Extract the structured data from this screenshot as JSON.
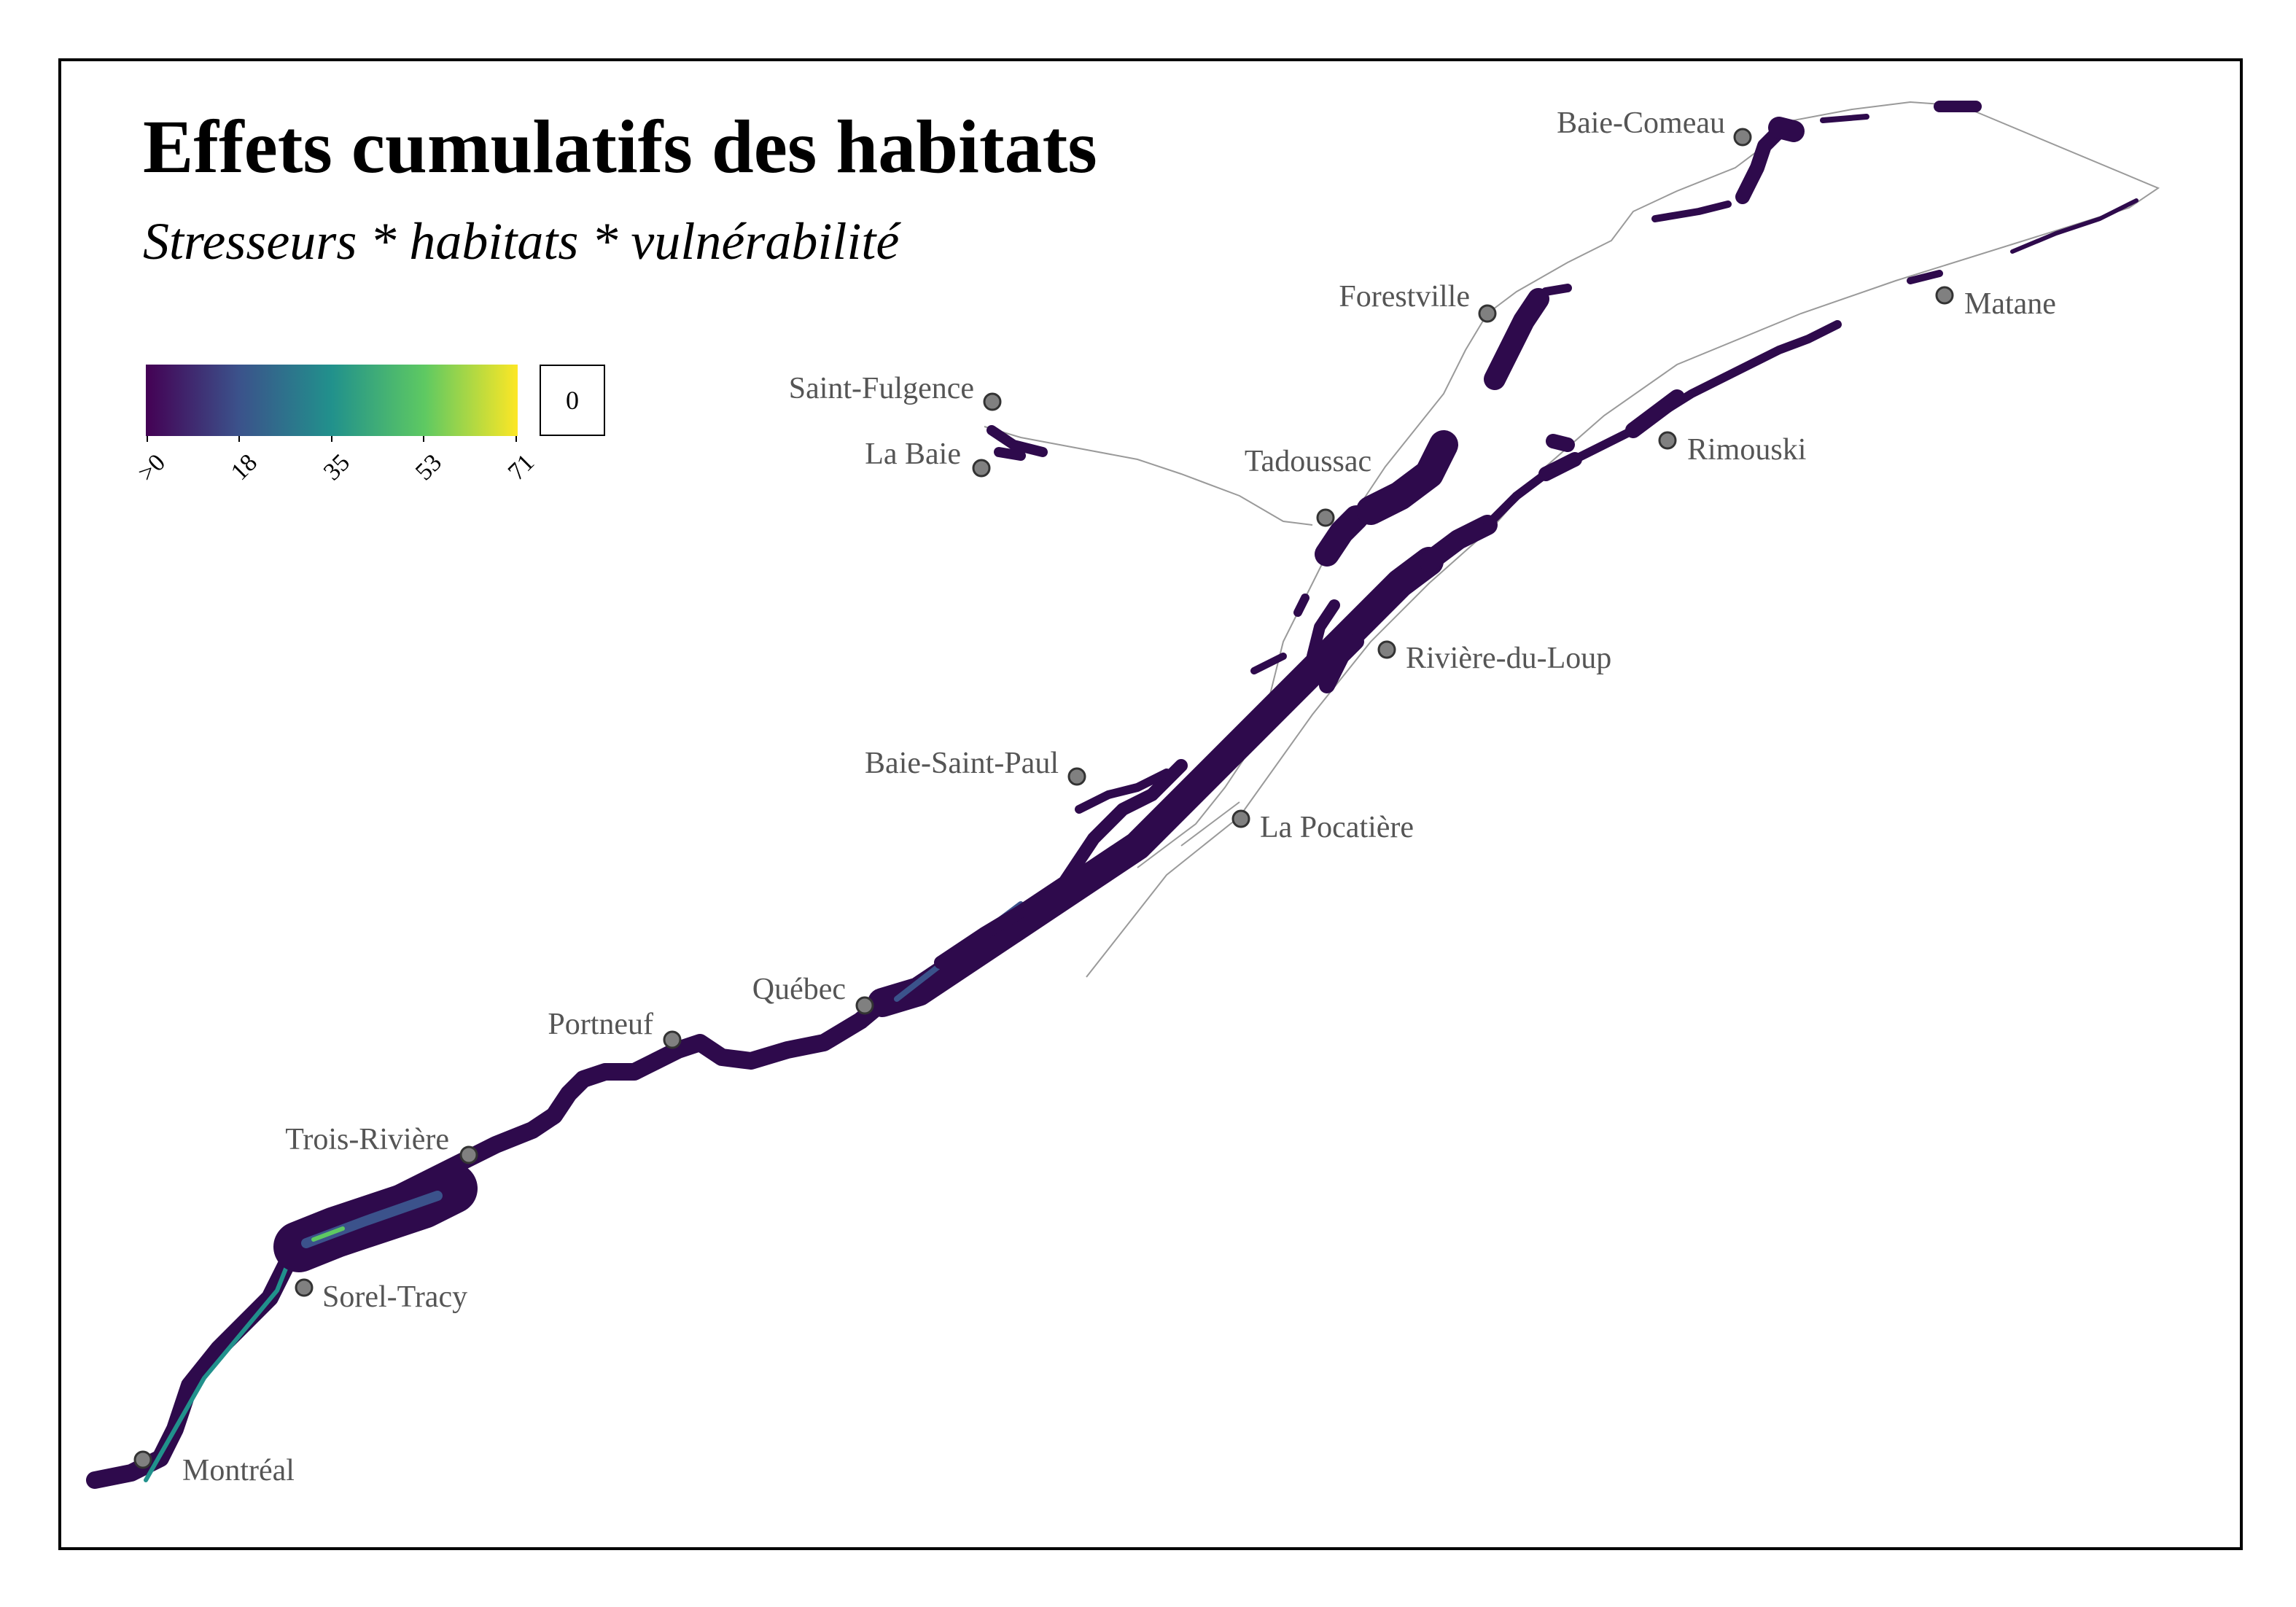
{
  "title": "Effets cumulatifs des habitats",
  "subtitle": "Stresseurs * habitats * vulnérabilité",
  "legend": {
    "scale": "viridis",
    "colors": [
      "#440154",
      "#3b528b",
      "#21918c",
      "#5ec962",
      "#fde725"
    ],
    "ticks": [
      ">0",
      "18",
      "35",
      "53",
      "71"
    ],
    "zero_box": "0"
  },
  "cities": [
    {
      "name": "Baie-Comeau"
    },
    {
      "name": "Forestville"
    },
    {
      "name": "Matane"
    },
    {
      "name": "Saint-Fulgence"
    },
    {
      "name": "La Baie"
    },
    {
      "name": "Rimouski"
    },
    {
      "name": "Tadoussac"
    },
    {
      "name": "Rivière-du-Loup"
    },
    {
      "name": "Baie-Saint-Paul"
    },
    {
      "name": "La Pocatière"
    },
    {
      "name": "Québec"
    },
    {
      "name": "Portneuf"
    },
    {
      "name": "Trois-Rivière"
    },
    {
      "name": "Sorel-Tracy"
    },
    {
      "name": "Montréal"
    }
  ],
  "colors": {
    "habitat_low": "#2e0a4c",
    "habitat_mid": "#3b528b",
    "habitat_high": "#21918c",
    "coastline": "#9a9a9a",
    "city_marker": "#808080"
  }
}
